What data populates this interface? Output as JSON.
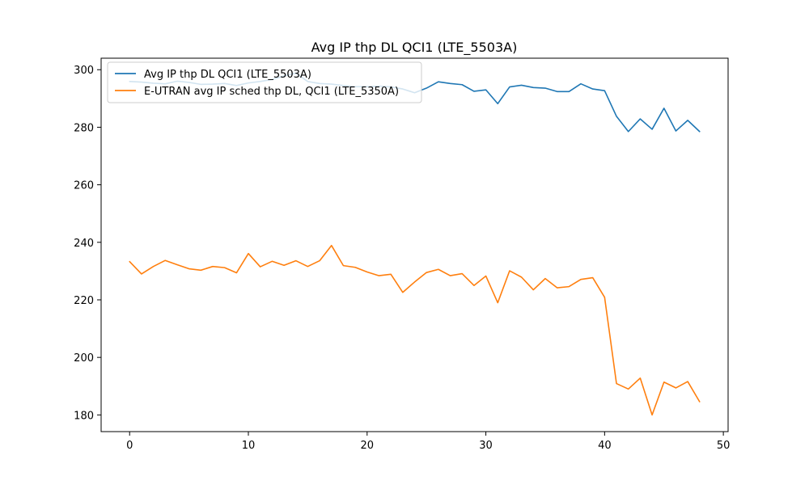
{
  "chart_data": {
    "type": "line",
    "title": "Avg IP thp DL QCI1 (LTE_5503A)",
    "xlabel": "",
    "ylabel": "",
    "xlim": [
      -2.4,
      50.4
    ],
    "ylim": [
      174.2,
      304.0
    ],
    "grid": false,
    "legend_position": "top-left",
    "xticks": [
      0,
      10,
      20,
      30,
      40,
      50
    ],
    "yticks": [
      180,
      200,
      220,
      240,
      260,
      280,
      300
    ],
    "x": [
      0,
      1,
      2,
      3,
      4,
      5,
      6,
      7,
      8,
      9,
      10,
      11,
      12,
      13,
      14,
      15,
      16,
      17,
      18,
      19,
      20,
      21,
      22,
      23,
      24,
      25,
      26,
      27,
      28,
      29,
      30,
      31,
      32,
      33,
      34,
      35,
      36,
      37,
      38,
      39,
      40,
      41,
      42,
      43,
      44,
      45,
      46,
      47,
      48
    ],
    "series": [
      {
        "name": "Avg IP thp DL QCI1 (LTE_5503A)",
        "color": "#1f77b4",
        "values": [
          295.9,
          295.7,
          295.3,
          295.1,
          296.0,
          295.6,
          294.9,
          295.0,
          295.2,
          294.5,
          295.4,
          295.9,
          296.6,
          297.8,
          298.8,
          295.9,
          295.2,
          295.0,
          294.5,
          294.1,
          294.1,
          294.3,
          294.0,
          293.3,
          292.0,
          293.6,
          295.8,
          295.2,
          294.8,
          292.5,
          293.0,
          288.2,
          294.0,
          294.6,
          293.8,
          293.6,
          292.4,
          292.4,
          295.1,
          293.3,
          292.7,
          283.8,
          278.5,
          282.9,
          279.3,
          286.6,
          278.7,
          282.4,
          278.5
        ]
      },
      {
        "name": "E-UTRAN avg IP sched thp DL, QCI1 (LTE_5350A)",
        "color": "#ff7f0e",
        "values": [
          233.3,
          229.0,
          231.6,
          233.7,
          232.2,
          230.8,
          230.3,
          231.6,
          231.2,
          229.4,
          236.1,
          231.5,
          233.4,
          232.0,
          233.6,
          231.6,
          233.6,
          238.9,
          231.9,
          231.3,
          229.7,
          228.4,
          228.9,
          222.6,
          226.2,
          229.5,
          230.6,
          228.4,
          229.1,
          225.0,
          228.3,
          219.0,
          230.1,
          227.9,
          223.5,
          227.4,
          224.2,
          224.6,
          227.1,
          227.7,
          220.9,
          190.9,
          189.0,
          192.8,
          180.0,
          191.4,
          189.4,
          191.6,
          184.6
        ]
      }
    ]
  }
}
